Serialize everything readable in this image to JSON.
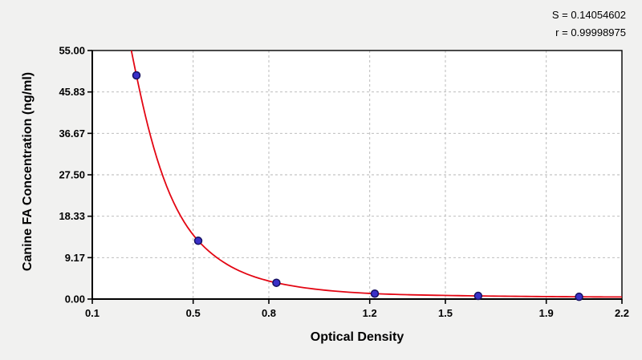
{
  "stats": {
    "s": "S = 0.14054602",
    "r": "r = 0.99998975"
  },
  "chart_data": {
    "type": "scatter",
    "title": "",
    "xlabel": "Optical Density",
    "ylabel": "Canine FA Concentration (ng/ml)",
    "xlim": [
      0.1,
      2.2
    ],
    "ylim": [
      0,
      55
    ],
    "x_ticks": [
      0.1,
      0.5,
      0.8,
      1.2,
      1.5,
      1.9,
      2.2
    ],
    "x_tick_labels": [
      "0.1",
      "0.5",
      "0.8",
      "1.2",
      "1.5",
      "1.9",
      "2.2"
    ],
    "y_ticks": [
      0,
      9.17,
      18.33,
      27.5,
      36.67,
      45.83,
      55
    ],
    "y_tick_labels": [
      "0.00",
      "9.17",
      "18.33",
      "27.50",
      "36.67",
      "45.83",
      "55.00"
    ],
    "grid": "dashed",
    "legend": "none",
    "points": [
      {
        "x": 0.275,
        "y": 49.5
      },
      {
        "x": 0.52,
        "y": 12.9
      },
      {
        "x": 0.83,
        "y": 3.6
      },
      {
        "x": 1.22,
        "y": 1.2
      },
      {
        "x": 1.63,
        "y": 0.7
      },
      {
        "x": 2.03,
        "y": 0.5
      }
    ],
    "curve_extension": {
      "left": {
        "x": 0.22,
        "y": 64
      },
      "right": {
        "x": 2.25,
        "y": 0.45
      }
    },
    "colors": {
      "curve": "#e30613",
      "point_fill": "#3a30c8",
      "point_edge": "#151060",
      "grid": "#b4b4b4",
      "axis": "#000000",
      "plot_bg": "#ffffff",
      "page_bg": "#f1f1f0"
    }
  }
}
